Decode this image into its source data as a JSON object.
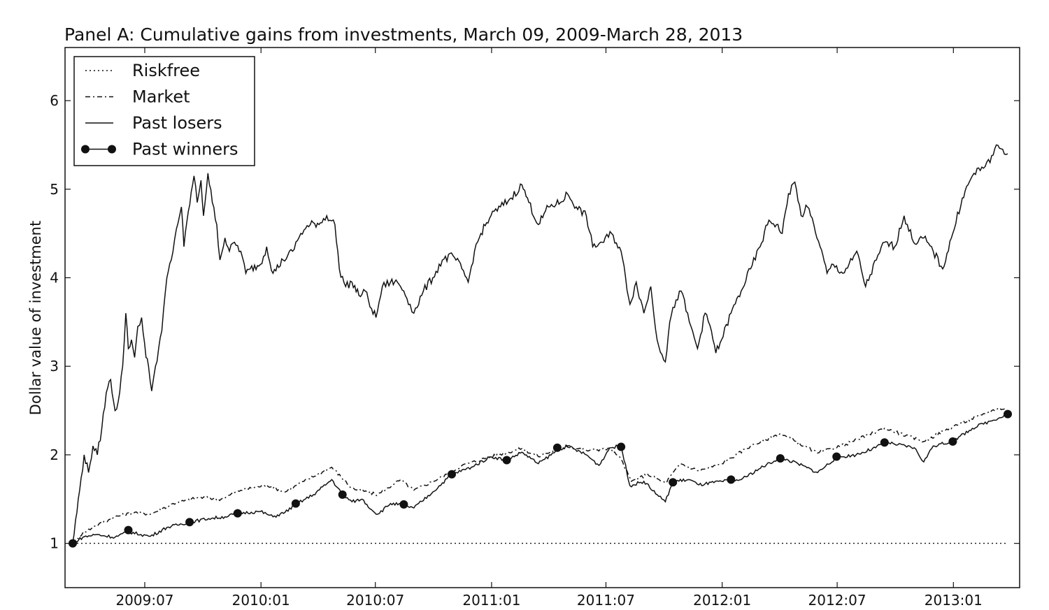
{
  "chart_data": {
    "type": "line",
    "title": "Panel A: Cumulative gains from investments, March 09, 2009-March 28, 2013",
    "xlabel": "",
    "ylabel": "Dollar value of investment",
    "x_range": [
      "2009-03-09",
      "2013-03-28"
    ],
    "ylim": [
      0.5,
      6.6
    ],
    "y_ticks": [
      1,
      2,
      3,
      4,
      5,
      6
    ],
    "x_ticks": [
      {
        "date": "2009-07-01",
        "label": "2009:07"
      },
      {
        "date": "2010-01-01",
        "label": "2010:01"
      },
      {
        "date": "2010-07-01",
        "label": "2010:07"
      },
      {
        "date": "2011-01-01",
        "label": "2011:01"
      },
      {
        "date": "2011-07-01",
        "label": "2011:07"
      },
      {
        "date": "2012-01-01",
        "label": "2012:01"
      },
      {
        "date": "2012-07-01",
        "label": "2012:07"
      },
      {
        "date": "2013-01-01",
        "label": "2013:01"
      }
    ],
    "grid": false,
    "legend_position": "top-left",
    "series": [
      {
        "name": "Riskfree",
        "style": "dotted",
        "points": [
          [
            "2009-03-09",
            1.0
          ],
          [
            "2013-03-28",
            1.0
          ]
        ]
      },
      {
        "name": "Market",
        "style": "dashdot",
        "points": [
          [
            "2009-03-09",
            1.0
          ],
          [
            "2009-03-25",
            1.12
          ],
          [
            "2009-04-15",
            1.2
          ],
          [
            "2009-05-15",
            1.3
          ],
          [
            "2009-06-15",
            1.35
          ],
          [
            "2009-07-10",
            1.33
          ],
          [
            "2009-08-15",
            1.45
          ],
          [
            "2009-09-25",
            1.52
          ],
          [
            "2009-10-30",
            1.5
          ],
          [
            "2009-11-30",
            1.6
          ],
          [
            "2010-01-10",
            1.66
          ],
          [
            "2010-02-08",
            1.58
          ],
          [
            "2010-03-10",
            1.7
          ],
          [
            "2010-04-23",
            1.86
          ],
          [
            "2010-05-25",
            1.62
          ],
          [
            "2010-07-05",
            1.55
          ],
          [
            "2010-08-10",
            1.72
          ],
          [
            "2010-08-31",
            1.6
          ],
          [
            "2010-10-15",
            1.75
          ],
          [
            "2010-11-15",
            1.88
          ],
          [
            "2010-12-31",
            1.98
          ],
          [
            "2011-02-18",
            2.07
          ],
          [
            "2011-03-16",
            1.98
          ],
          [
            "2011-04-29",
            2.1
          ],
          [
            "2011-05-31",
            2.05
          ],
          [
            "2011-07-07",
            2.07
          ],
          [
            "2011-07-25",
            1.95
          ],
          [
            "2011-08-10",
            1.7
          ],
          [
            "2011-09-05",
            1.78
          ],
          [
            "2011-10-03",
            1.68
          ],
          [
            "2011-10-27",
            1.9
          ],
          [
            "2011-11-25",
            1.82
          ],
          [
            "2011-12-31",
            1.9
          ],
          [
            "2012-02-15",
            2.1
          ],
          [
            "2012-04-02",
            2.24
          ],
          [
            "2012-05-31",
            2.02
          ],
          [
            "2012-07-15",
            2.12
          ],
          [
            "2012-09-14",
            2.3
          ],
          [
            "2012-11-15",
            2.15
          ],
          [
            "2012-12-31",
            2.32
          ],
          [
            "2013-02-15",
            2.45
          ],
          [
            "2013-03-15",
            2.53
          ],
          [
            "2013-03-28",
            2.5
          ]
        ]
      },
      {
        "name": "Past losers",
        "style": "solid",
        "points": [
          [
            "2009-03-09",
            1.0
          ],
          [
            "2009-03-20",
            1.6
          ],
          [
            "2009-03-27",
            2.0
          ],
          [
            "2009-04-03",
            1.8
          ],
          [
            "2009-04-10",
            2.1
          ],
          [
            "2009-04-17",
            2.0
          ],
          [
            "2009-04-24",
            2.3
          ],
          [
            "2009-05-01",
            2.7
          ],
          [
            "2009-05-08",
            2.85
          ],
          [
            "2009-05-15",
            2.5
          ],
          [
            "2009-05-20",
            2.6
          ],
          [
            "2009-05-27",
            3.0
          ],
          [
            "2009-06-01",
            3.6
          ],
          [
            "2009-06-05",
            3.2
          ],
          [
            "2009-06-10",
            3.3
          ],
          [
            "2009-06-15",
            3.1
          ],
          [
            "2009-06-20",
            3.45
          ],
          [
            "2009-06-26",
            3.55
          ],
          [
            "2009-07-03",
            3.1
          ],
          [
            "2009-07-07",
            3.0
          ],
          [
            "2009-07-12",
            2.72
          ],
          [
            "2009-07-18",
            3.0
          ],
          [
            "2009-07-28",
            3.4
          ],
          [
            "2009-08-05",
            4.0
          ],
          [
            "2009-08-12",
            4.2
          ],
          [
            "2009-08-20",
            4.55
          ],
          [
            "2009-08-28",
            4.8
          ],
          [
            "2009-09-01",
            4.35
          ],
          [
            "2009-09-08",
            4.75
          ],
          [
            "2009-09-17",
            5.15
          ],
          [
            "2009-09-22",
            4.85
          ],
          [
            "2009-09-28",
            5.1
          ],
          [
            "2009-10-02",
            4.7
          ],
          [
            "2009-10-09",
            5.18
          ],
          [
            "2009-10-16",
            4.85
          ],
          [
            "2009-10-23",
            4.6
          ],
          [
            "2009-10-28",
            4.2
          ],
          [
            "2009-11-05",
            4.45
          ],
          [
            "2009-11-12",
            4.3
          ],
          [
            "2009-11-20",
            4.4
          ],
          [
            "2009-11-30",
            4.3
          ],
          [
            "2009-12-08",
            4.05
          ],
          [
            "2009-12-15",
            4.1
          ],
          [
            "2009-12-31",
            4.15
          ],
          [
            "2010-01-10",
            4.35
          ],
          [
            "2010-01-20",
            4.05
          ],
          [
            "2010-02-05",
            4.2
          ],
          [
            "2010-02-20",
            4.3
          ],
          [
            "2010-03-05",
            4.5
          ],
          [
            "2010-03-20",
            4.6
          ],
          [
            "2010-04-05",
            4.62
          ],
          [
            "2010-04-15",
            4.7
          ],
          [
            "2010-04-28",
            4.6
          ],
          [
            "2010-05-05",
            4.1
          ],
          [
            "2010-05-15",
            3.9
          ],
          [
            "2010-05-25",
            3.95
          ],
          [
            "2010-06-05",
            3.8
          ],
          [
            "2010-06-15",
            3.85
          ],
          [
            "2010-06-25",
            3.65
          ],
          [
            "2010-07-02",
            3.55
          ],
          [
            "2010-07-12",
            3.9
          ],
          [
            "2010-07-25",
            3.95
          ],
          [
            "2010-08-05",
            3.95
          ],
          [
            "2010-08-15",
            3.85
          ],
          [
            "2010-08-25",
            3.7
          ],
          [
            "2010-08-31",
            3.6
          ],
          [
            "2010-09-15",
            3.85
          ],
          [
            "2010-09-30",
            4.0
          ],
          [
            "2010-10-15",
            4.2
          ],
          [
            "2010-11-01",
            4.25
          ],
          [
            "2010-11-15",
            4.1
          ],
          [
            "2010-11-25",
            3.95
          ],
          [
            "2010-12-05",
            4.3
          ],
          [
            "2010-12-15",
            4.5
          ],
          [
            "2010-12-31",
            4.7
          ],
          [
            "2011-01-15",
            4.8
          ],
          [
            "2011-02-01",
            4.9
          ],
          [
            "2011-02-18",
            5.05
          ],
          [
            "2011-03-01",
            4.85
          ],
          [
            "2011-03-16",
            4.6
          ],
          [
            "2011-04-01",
            4.8
          ],
          [
            "2011-04-20",
            4.85
          ],
          [
            "2011-05-01",
            4.95
          ],
          [
            "2011-05-15",
            4.8
          ],
          [
            "2011-05-31",
            4.7
          ],
          [
            "2011-06-10",
            4.35
          ],
          [
            "2011-06-25",
            4.4
          ],
          [
            "2011-07-10",
            4.5
          ],
          [
            "2011-07-25",
            4.3
          ],
          [
            "2011-08-08",
            3.7
          ],
          [
            "2011-08-18",
            3.95
          ],
          [
            "2011-08-30",
            3.6
          ],
          [
            "2011-09-10",
            3.9
          ],
          [
            "2011-09-20",
            3.3
          ],
          [
            "2011-10-03",
            3.05
          ],
          [
            "2011-10-10",
            3.5
          ],
          [
            "2011-10-20",
            3.75
          ],
          [
            "2011-10-28",
            3.85
          ],
          [
            "2011-11-10",
            3.5
          ],
          [
            "2011-11-23",
            3.2
          ],
          [
            "2011-12-05",
            3.6
          ],
          [
            "2011-12-15",
            3.4
          ],
          [
            "2011-12-22",
            3.15
          ],
          [
            "2011-12-31",
            3.3
          ],
          [
            "2012-01-15",
            3.6
          ],
          [
            "2012-01-31",
            3.85
          ],
          [
            "2012-02-15",
            4.1
          ],
          [
            "2012-03-01",
            4.35
          ],
          [
            "2012-03-15",
            4.65
          ],
          [
            "2012-03-27",
            4.6
          ],
          [
            "2012-04-05",
            4.5
          ],
          [
            "2012-04-15",
            4.95
          ],
          [
            "2012-04-25",
            5.08
          ],
          [
            "2012-05-05",
            4.7
          ],
          [
            "2012-05-15",
            4.8
          ],
          [
            "2012-05-25",
            4.6
          ],
          [
            "2012-06-04",
            4.35
          ],
          [
            "2012-06-15",
            4.05
          ],
          [
            "2012-06-25",
            4.15
          ],
          [
            "2012-07-10",
            4.05
          ],
          [
            "2012-07-25",
            4.2
          ],
          [
            "2012-08-01",
            4.3
          ],
          [
            "2012-08-15",
            3.9
          ],
          [
            "2012-09-01",
            4.2
          ],
          [
            "2012-09-14",
            4.4
          ],
          [
            "2012-09-30",
            4.35
          ],
          [
            "2012-10-15",
            4.7
          ],
          [
            "2012-10-30",
            4.4
          ],
          [
            "2012-11-15",
            4.45
          ],
          [
            "2012-11-30",
            4.3
          ],
          [
            "2012-12-15",
            4.1
          ],
          [
            "2012-12-31",
            4.5
          ],
          [
            "2013-01-15",
            4.9
          ],
          [
            "2013-01-31",
            5.15
          ],
          [
            "2013-02-15",
            5.25
          ],
          [
            "2013-02-28",
            5.3
          ],
          [
            "2013-03-10",
            5.5
          ],
          [
            "2013-03-20",
            5.45
          ],
          [
            "2013-03-28",
            5.4
          ]
        ]
      },
      {
        "name": "Past winners",
        "style": "solid-markers",
        "points": [
          [
            "2009-03-09",
            1.0
          ],
          [
            "2009-03-25",
            1.07
          ],
          [
            "2009-04-15",
            1.1
          ],
          [
            "2009-05-15",
            1.07
          ],
          [
            "2009-06-05",
            1.13
          ],
          [
            "2009-06-25",
            1.1
          ],
          [
            "2009-07-10",
            1.08
          ],
          [
            "2009-08-05",
            1.18
          ],
          [
            "2009-09-10",
            1.24
          ],
          [
            "2009-10-10",
            1.28
          ],
          [
            "2009-11-05",
            1.3
          ],
          [
            "2009-11-25",
            1.34
          ],
          [
            "2009-12-31",
            1.36
          ],
          [
            "2010-01-20",
            1.3
          ],
          [
            "2010-02-08",
            1.35
          ],
          [
            "2010-02-25",
            1.44
          ],
          [
            "2010-03-25",
            1.55
          ],
          [
            "2010-04-23",
            1.72
          ],
          [
            "2010-05-10",
            1.55
          ],
          [
            "2010-05-25",
            1.47
          ],
          [
            "2010-06-10",
            1.5
          ],
          [
            "2010-06-25",
            1.38
          ],
          [
            "2010-07-05",
            1.33
          ],
          [
            "2010-07-25",
            1.45
          ],
          [
            "2010-08-15",
            1.43
          ],
          [
            "2010-08-31",
            1.4
          ],
          [
            "2010-09-30",
            1.58
          ],
          [
            "2010-10-30",
            1.78
          ],
          [
            "2010-11-30",
            1.86
          ],
          [
            "2010-12-31",
            1.98
          ],
          [
            "2011-01-25",
            1.94
          ],
          [
            "2011-02-18",
            2.03
          ],
          [
            "2011-03-16",
            1.9
          ],
          [
            "2011-04-15",
            2.05
          ],
          [
            "2011-05-01",
            2.1
          ],
          [
            "2011-05-31",
            2.0
          ],
          [
            "2011-06-20",
            1.88
          ],
          [
            "2011-07-07",
            2.08
          ],
          [
            "2011-07-25",
            2.1
          ],
          [
            "2011-08-08",
            1.65
          ],
          [
            "2011-08-30",
            1.7
          ],
          [
            "2011-09-20",
            1.55
          ],
          [
            "2011-10-03",
            1.47
          ],
          [
            "2011-10-15",
            1.7
          ],
          [
            "2011-11-10",
            1.72
          ],
          [
            "2011-11-25",
            1.66
          ],
          [
            "2011-12-31",
            1.7
          ],
          [
            "2012-01-31",
            1.72
          ],
          [
            "2012-02-28",
            1.84
          ],
          [
            "2012-04-02",
            1.97
          ],
          [
            "2012-04-30",
            1.9
          ],
          [
            "2012-05-31",
            1.8
          ],
          [
            "2012-06-30",
            1.97
          ],
          [
            "2012-07-31",
            2.0
          ],
          [
            "2012-08-31",
            2.08
          ],
          [
            "2012-09-14",
            2.15
          ],
          [
            "2012-09-30",
            2.12
          ],
          [
            "2012-10-31",
            2.08
          ],
          [
            "2012-11-15",
            1.92
          ],
          [
            "2012-11-30",
            2.1
          ],
          [
            "2012-12-31",
            2.15
          ],
          [
            "2013-01-31",
            2.3
          ],
          [
            "2013-02-28",
            2.38
          ],
          [
            "2013-03-28",
            2.46
          ]
        ],
        "markers": [
          [
            "2009-03-09",
            1.0
          ],
          [
            "2009-06-05",
            1.15
          ],
          [
            "2009-09-10",
            1.24
          ],
          [
            "2009-11-25",
            1.34
          ],
          [
            "2010-02-25",
            1.45
          ],
          [
            "2010-05-10",
            1.55
          ],
          [
            "2010-08-15",
            1.44
          ],
          [
            "2010-10-30",
            1.78
          ],
          [
            "2011-01-25",
            1.94
          ],
          [
            "2011-04-15",
            2.08
          ],
          [
            "2011-07-25",
            2.09
          ],
          [
            "2011-10-15",
            1.69
          ],
          [
            "2012-01-15",
            1.72
          ],
          [
            "2012-04-02",
            1.96
          ],
          [
            "2012-06-30",
            1.98
          ],
          [
            "2012-09-14",
            2.14
          ],
          [
            "2012-12-31",
            2.15
          ],
          [
            "2013-03-28",
            2.46
          ]
        ]
      }
    ]
  }
}
